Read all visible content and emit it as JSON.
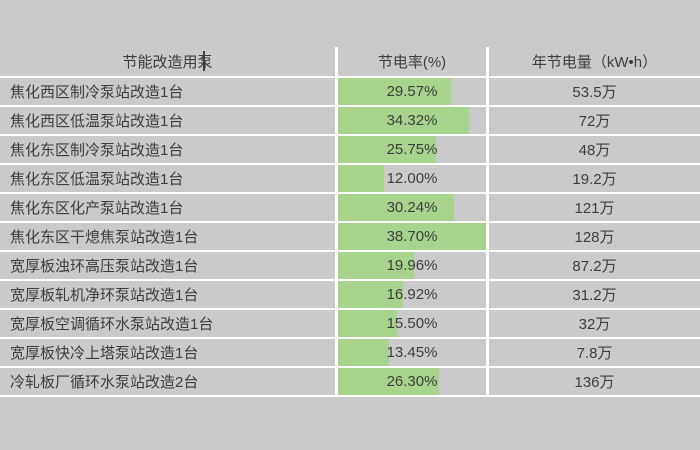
{
  "colors": {
    "background": "#cacaca",
    "grid_separator": "#ffffff",
    "text": "#3d3d3d",
    "data_bar": "#a8d38a"
  },
  "header": {
    "pump": "节能改造用泵",
    "rate": "节电率(%)",
    "annual": "年节电量（kW•h）"
  },
  "bar_scale_max": 38.7,
  "rows": [
    {
      "name": "焦化西区制冷泵站改造1台",
      "rate_label": "29.57%",
      "rate_value": 29.57,
      "annual": "53.5万"
    },
    {
      "name": "焦化西区低温泵站改造1台",
      "rate_label": "34.32%",
      "rate_value": 34.32,
      "annual": "72万"
    },
    {
      "name": "焦化东区制冷泵站改造1台",
      "rate_label": "25.75%",
      "rate_value": 25.75,
      "annual": "48万"
    },
    {
      "name": "焦化东区低温泵站改造1台",
      "rate_label": "12.00%",
      "rate_value": 12.0,
      "annual": "19.2万"
    },
    {
      "name": "焦化东区化产泵站改造1台",
      "rate_label": "30.24%",
      "rate_value": 30.24,
      "annual": "121万"
    },
    {
      "name": "焦化东区干熄焦泵站改造1台",
      "rate_label": "38.70%",
      "rate_value": 38.7,
      "annual": "128万"
    },
    {
      "name": "宽厚板浊环高压泵站改造1台",
      "rate_label": "19.96%",
      "rate_value": 19.96,
      "annual": "87.2万"
    },
    {
      "name": "宽厚板轧机净环泵站改造1台",
      "rate_label": "16.92%",
      "rate_value": 16.92,
      "annual": "31.2万"
    },
    {
      "name": "宽厚板空调循环水泵站改造1台",
      "rate_label": "15.50%",
      "rate_value": 15.5,
      "annual": "32万"
    },
    {
      "name": "宽厚板快冷上塔泵站改造1台",
      "rate_label": "13.45%",
      "rate_value": 13.45,
      "annual": "7.8万"
    },
    {
      "name": "冷轧板厂循环水泵站改造2台",
      "rate_label": "26.30%",
      "rate_value": 26.3,
      "annual": "136万"
    }
  ],
  "chart_data": {
    "type": "table",
    "title": "",
    "columns": [
      "节能改造用泵",
      "节电率(%)",
      "年节电量（kW•h）"
    ],
    "rows": [
      [
        "焦化西区制冷泵站改造1台",
        "29.57%",
        "53.5万"
      ],
      [
        "焦化西区低温泵站改造1台",
        "34.32%",
        "72万"
      ],
      [
        "焦化东区制冷泵站改造1台",
        "25.75%",
        "48万"
      ],
      [
        "焦化东区低温泵站改造1台",
        "12.00%",
        "19.2万"
      ],
      [
        "焦化东区化产泵站改造1台",
        "30.24%",
        "121万"
      ],
      [
        "焦化东区干熄焦泵站改造1台",
        "38.70%",
        "128万"
      ],
      [
        "宽厚板浊环高压泵站改造1台",
        "19.96%",
        "87.2万"
      ],
      [
        "宽厚板轧机净环泵站改造1台",
        "16.92%",
        "31.2万"
      ],
      [
        "宽厚板空调循环水泵站改造1台",
        "15.50%",
        "32万"
      ],
      [
        "宽厚板快冷上塔泵站改造1台",
        "13.45%",
        "7.8万"
      ],
      [
        "冷轧板厂循环水泵站改造2台",
        "26.30%",
        "136万"
      ]
    ],
    "data_bars": {
      "column": "节电率(%)",
      "values": [
        29.57,
        34.32,
        25.75,
        12.0,
        30.24,
        38.7,
        19.96,
        16.92,
        15.5,
        13.45,
        26.3
      ],
      "axis_range": [
        0,
        38.7
      ],
      "color": "#a8d38a"
    },
    "layout_hints": {
      "grid": "white 2-3px separators on gray cells",
      "bar_fill_rule": "bar width = value / 38.7 of cell width"
    }
  }
}
